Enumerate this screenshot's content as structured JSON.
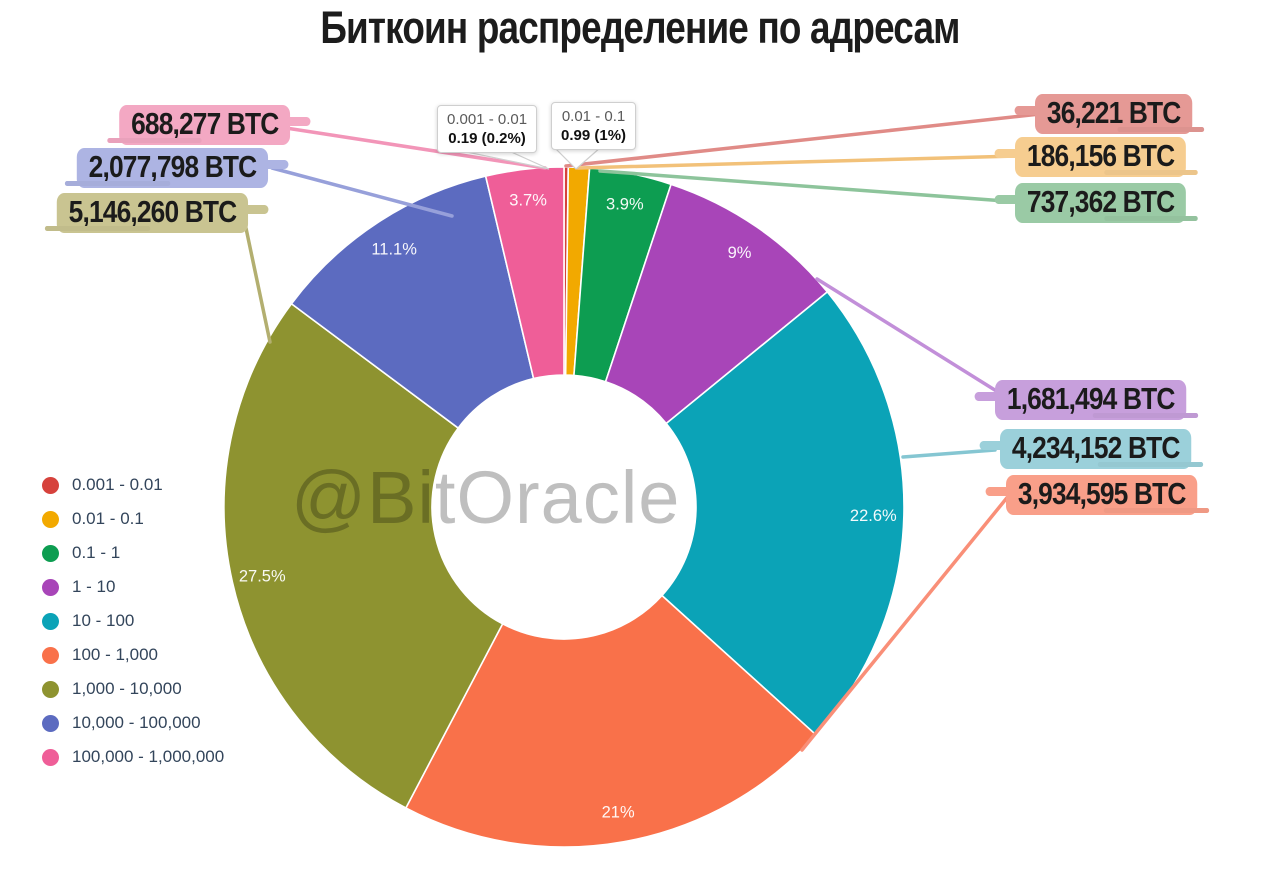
{
  "title": "Биткоин распределение по адресам",
  "watermark": "@BitOracle",
  "tooltips": [
    {
      "range": "0.001 - 0.01",
      "value": "0.19 (0.2%)"
    },
    {
      "range": "0.01 - 0.1",
      "value": "0.99 (1%)"
    }
  ],
  "chart_data": {
    "type": "pie",
    "subtype": "donut",
    "title": "Биткоин распределение по адресам",
    "legend_position": "left",
    "start_angle_deg": 0,
    "direction": "clockwise",
    "categories": [
      "0.001 - 0.01",
      "0.01 - 0.1",
      "0.1 - 1",
      "1 - 10",
      "10 - 100",
      "100 - 1,000",
      "1,000 - 10,000",
      "10,000 - 100,000",
      "100,000 - 1,000,000"
    ],
    "values_percent": [
      0.2,
      1,
      3.9,
      9,
      22.6,
      21,
      27.5,
      11.1,
      3.7
    ],
    "percent_labels": [
      "",
      "",
      "3.9%",
      "9%",
      "22.6%",
      "21%",
      "27.5%",
      "11.1%",
      "3.7%"
    ],
    "btc_labels": [
      "36,221 BTC",
      "186,156 BTC",
      "737,362 BTC",
      "1,681,494 BTC",
      "4,234,152 BTC",
      "3,934,595 BTC",
      "5,146,260 BTC",
      "2,077,798 BTC",
      "688,277 BTC"
    ],
    "colors": [
      "#d6423c",
      "#f2a900",
      "#0d9d51",
      "#a845b8",
      "#0ba3b7",
      "#f9714a",
      "#8e9330",
      "#5c6bc0",
      "#ef5e98"
    ],
    "highlight_colors": [
      "#e59995",
      "#f6cd90",
      "#9acaa5",
      "#c79fdc",
      "#9bd0da",
      "#f99f89",
      "#c9c491",
      "#adb4e3",
      "#f3a8c3"
    ],
    "connector_colors": [
      "#e08b87",
      "#f2c179",
      "#8dc49b",
      "#c28fd9",
      "#85c6d2",
      "#f98f78",
      "#b3af70",
      "#97a0da",
      "#f295b8"
    ],
    "percent_label_color": "#ffffff"
  }
}
